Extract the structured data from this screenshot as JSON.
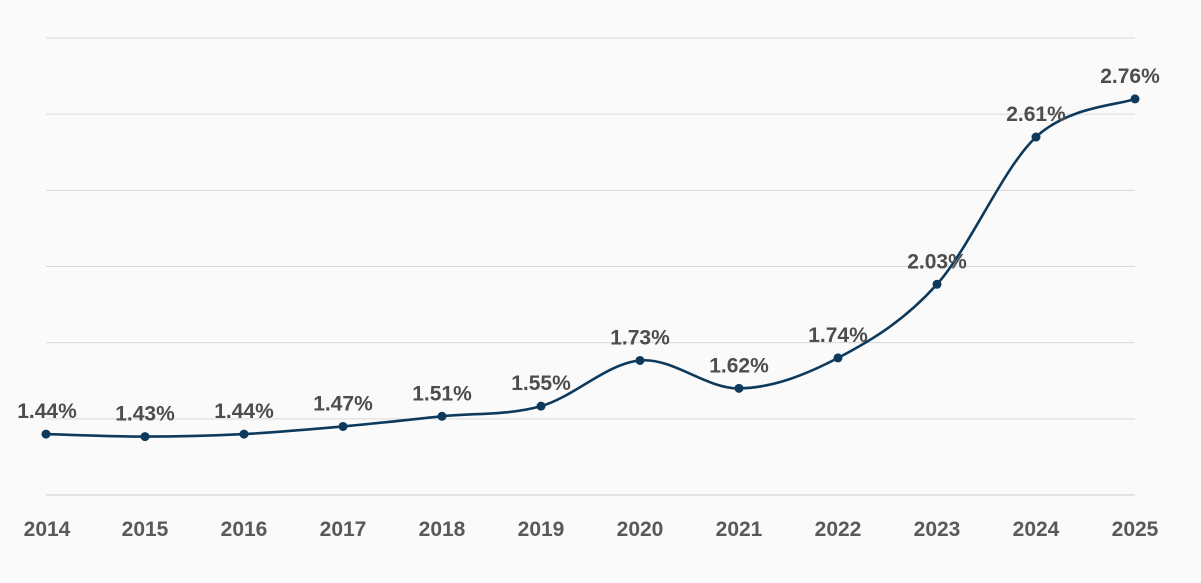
{
  "chart_data": {
    "type": "line",
    "categories": [
      "2014",
      "2015",
      "2016",
      "2017",
      "2018",
      "2019",
      "2020",
      "2021",
      "2022",
      "2023",
      "2024",
      "2025"
    ],
    "series": [
      {
        "values": [
          1.44,
          1.43,
          1.44,
          1.47,
          1.51,
          1.55,
          1.73,
          1.62,
          1.74,
          2.03,
          2.61,
          2.76
        ],
        "labels": [
          "1.44%",
          "1.43%",
          "1.44%",
          "1.47%",
          "1.51%",
          "1.55%",
          "1.73%",
          "1.62%",
          "1.74%",
          "2.03%",
          "2.61%",
          "2.76%"
        ]
      }
    ],
    "ylim": [
      1.2,
      3.0
    ],
    "value_suffix": "%",
    "grid": true,
    "smooth": true,
    "line_color": "#0d3a5c",
    "marker_color": "#0d3a5c"
  }
}
